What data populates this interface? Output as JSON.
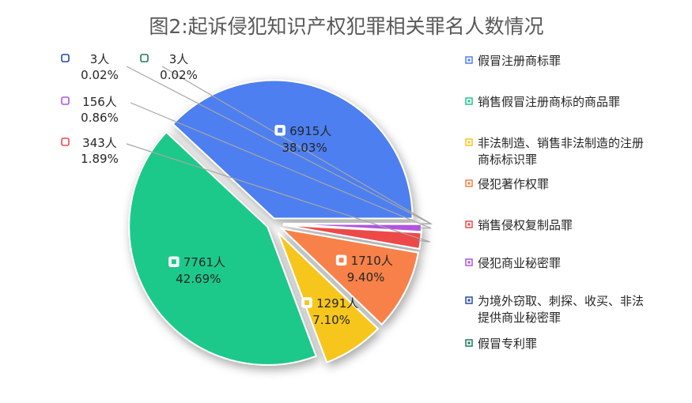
{
  "chart_data": {
    "type": "pie",
    "title": "图2:起诉侵犯知识产权犯罪相关罪名人数情况",
    "legend_position": "right",
    "slices": [
      {
        "name": "假冒注册商标罪",
        "count_label": "6915人",
        "percent_label": "38.03%",
        "value": 6915,
        "percent": 38.03,
        "color": "#4e7ff0"
      },
      {
        "name": "销售假冒注册商标的商品罪",
        "count_label": "7761人",
        "percent_label": "42.69%",
        "value": 7761,
        "percent": 42.69,
        "color": "#1dc98a"
      },
      {
        "name": "非法制造、销售非法制造的注册商标标识罪",
        "legend_lines": [
          "非法制造、销售非法制造的注册",
          "商标标识罪"
        ],
        "count_label": "1291人",
        "percent_label": "7.10%",
        "value": 1291,
        "percent": 7.1,
        "color": "#f6c61c"
      },
      {
        "name": "侵犯著作权罪",
        "count_label": "1710人",
        "percent_label": "9.40%",
        "value": 1710,
        "percent": 9.4,
        "color": "#f7814a"
      },
      {
        "name": "销售侵权复制品罪",
        "count_label": "343人",
        "percent_label": "1.89%",
        "value": 343,
        "percent": 1.89,
        "color": "#ee4a4a"
      },
      {
        "name": "侵犯商业秘密罪",
        "count_label": "156人",
        "percent_label": "0.86%",
        "value": 156,
        "percent": 0.86,
        "color": "#b055e0"
      },
      {
        "name": "为境外窃取、刺探、收买、非法提供商业秘密罪",
        "legend_lines": [
          "为境外窃取、刺探、收买、非法",
          "提供商业秘密罪"
        ],
        "count_label": "3人",
        "percent_label": "0.02%",
        "value": 3,
        "percent": 0.02,
        "color": "#2549a8"
      },
      {
        "name": "假冒专利罪",
        "count_label": "3人",
        "percent_label": "0.02%",
        "value": 3,
        "percent": 0.02,
        "color": "#1f7a5e"
      }
    ]
  }
}
